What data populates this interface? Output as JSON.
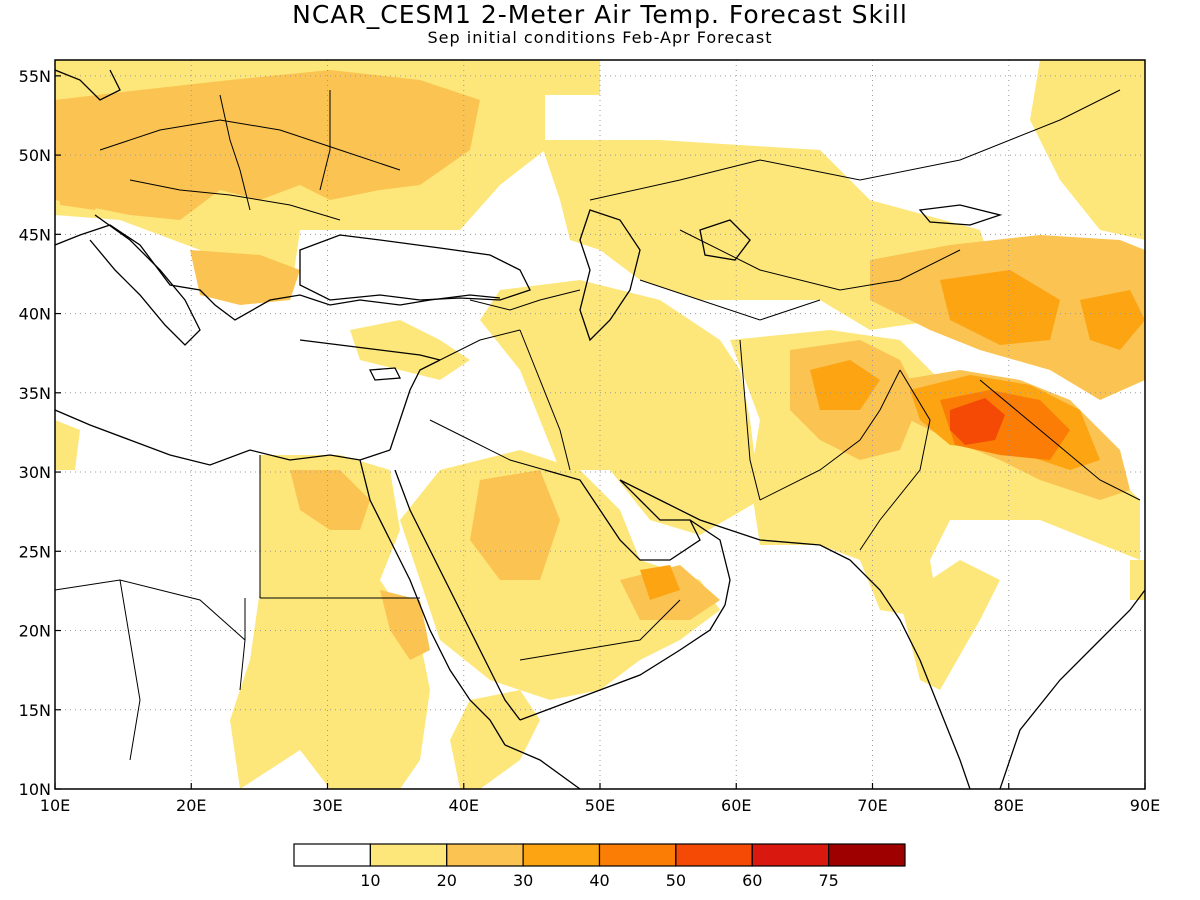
{
  "header": {
    "title": "NCAR_CESM1 2-Meter Air Temp. Forecast Skill",
    "subtitle": "Sep initial conditions  Feb-Apr Forecast"
  },
  "map": {
    "lon_range": [
      10,
      90
    ],
    "lat_range": [
      10,
      56
    ],
    "lon_ticks": [
      "10E",
      "20E",
      "30E",
      "40E",
      "50E",
      "60E",
      "70E",
      "80E",
      "90E"
    ],
    "lat_ticks": [
      "10N",
      "15N",
      "20N",
      "25N",
      "30N",
      "35N",
      "40N",
      "45N",
      "50N",
      "55N"
    ],
    "grid": "dotted"
  },
  "colorbar": {
    "labels": [
      "10",
      "20",
      "30",
      "40",
      "50",
      "60",
      "75"
    ],
    "colors": [
      "#ffffff",
      "#fde77a",
      "#fbc351",
      "#fca412",
      "#fb7d06",
      "#f44a06",
      "#d9190f",
      "#9e0000"
    ]
  }
}
